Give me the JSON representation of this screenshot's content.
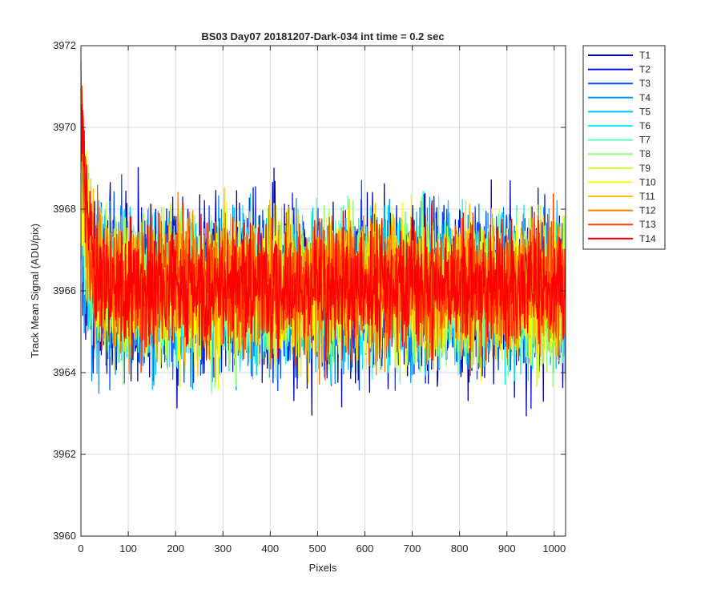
{
  "chart_data": {
    "type": "line",
    "title": "BS03 Day07 20181207-Dark-034 int time = 0.2 sec",
    "xlabel": "Pixels",
    "ylabel": "Track Mean Signal (ADU/pix)",
    "xlim": [
      0,
      1024
    ],
    "ylim": [
      3960,
      3972
    ],
    "xticks": [
      0,
      100,
      200,
      300,
      400,
      500,
      600,
      700,
      800,
      900,
      1000
    ],
    "yticks": [
      3960,
      3962,
      3964,
      3966,
      3968,
      3970,
      3972
    ],
    "xtick_labels": [
      "0",
      "100",
      "200",
      "300",
      "400",
      "500",
      "600",
      "700",
      "800",
      "900",
      "1000"
    ],
    "ytick_labels": [
      "3960",
      "3962",
      "3964",
      "3966",
      "3968",
      "3970",
      "3972"
    ],
    "grid": true,
    "legend_position": "outside-top-right",
    "series": [
      {
        "name": "T1",
        "color": "#0000b0",
        "baseline": 3966.0,
        "spread": 1.05,
        "start_value": 3967.5
      },
      {
        "name": "T2",
        "color": "#0014e0",
        "baseline": 3966.0,
        "spread": 1.0,
        "start_value": 3967.8
      },
      {
        "name": "T3",
        "color": "#0050ff",
        "baseline": 3966.0,
        "spread": 0.95,
        "start_value": 3968.0
      },
      {
        "name": "T4",
        "color": "#0090ff",
        "baseline": 3966.0,
        "spread": 0.95,
        "start_value": 3968.3
      },
      {
        "name": "T5",
        "color": "#00c0ff",
        "baseline": 3966.0,
        "spread": 0.9,
        "start_value": 3968.5
      },
      {
        "name": "T6",
        "color": "#10f0f0",
        "baseline": 3966.0,
        "spread": 0.9,
        "start_value": 3968.8
      },
      {
        "name": "T7",
        "color": "#60ffc0",
        "baseline": 3966.0,
        "spread": 0.85,
        "start_value": 3969.0
      },
      {
        "name": "T8",
        "color": "#90ff70",
        "baseline": 3966.0,
        "spread": 0.85,
        "start_value": 3969.3
      },
      {
        "name": "T9",
        "color": "#c8ff30",
        "baseline": 3966.0,
        "spread": 0.85,
        "start_value": 3969.5
      },
      {
        "name": "T10",
        "color": "#ffff00",
        "baseline": 3966.0,
        "spread": 0.85,
        "start_value": 3969.8
      },
      {
        "name": "T11",
        "color": "#ffc000",
        "baseline": 3966.1,
        "spread": 0.8,
        "start_value": 3970.2
      },
      {
        "name": "T12",
        "color": "#ff8000",
        "baseline": 3966.1,
        "spread": 0.8,
        "start_value": 3970.5
      },
      {
        "name": "T13",
        "color": "#ff4000",
        "baseline": 3966.1,
        "spread": 0.8,
        "start_value": 3970.8
      },
      {
        "name": "T14",
        "color": "#ff0000",
        "baseline": 3966.1,
        "spread": 0.75,
        "start_value": 3971.3
      }
    ]
  }
}
